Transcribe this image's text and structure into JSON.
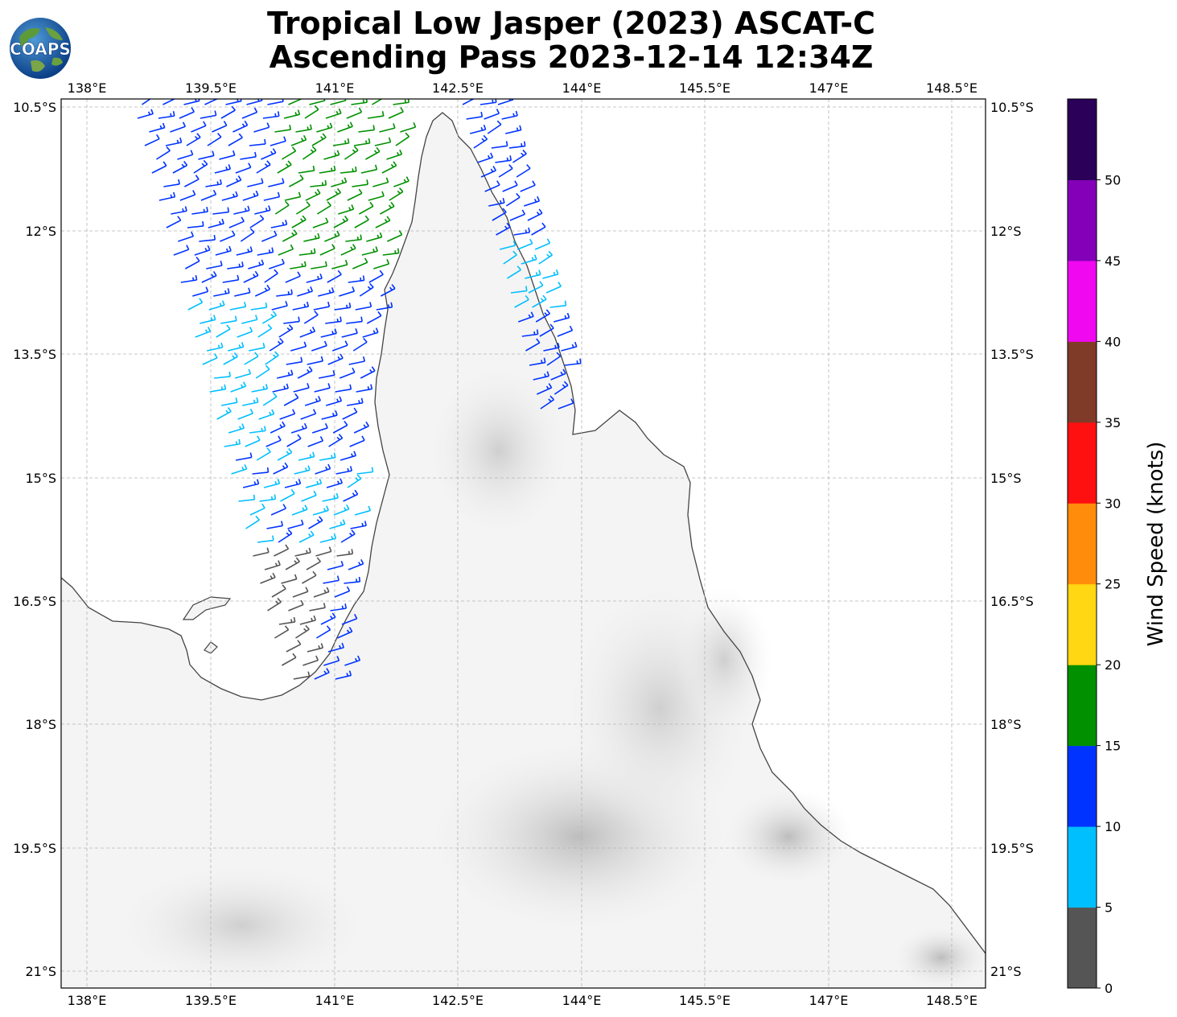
{
  "title": {
    "line1": "Tropical Low Jasper (2023) ASCAT-C",
    "line2": "Ascending Pass 2023-12-14 12:34Z"
  },
  "logo": {
    "text": "COAPS",
    "icon": "coaps-globe-logo"
  },
  "map": {
    "lon_range": [
      137.7,
      148.9
    ],
    "lat_range": [
      -21.2,
      -10.4
    ],
    "lon_ticks": [
      "138°E",
      "139.5°E",
      "141°E",
      "142.5°E",
      "144°E",
      "145.5°E",
      "147°E",
      "148.5°E"
    ],
    "lat_ticks": [
      "10.5°S",
      "12°S",
      "13.5°S",
      "15°S",
      "16.5°S",
      "18°S",
      "19.5°S",
      "21°S"
    ],
    "gridlines": true,
    "land_shading": "grayscale elevation",
    "wind_barbs": "scatterometer wind barbs colored by speed over Gulf of Carpentaria and Coral Sea coast"
  },
  "colorbar": {
    "label": "Wind Speed (knots)",
    "ticks": [
      "0",
      "5",
      "10",
      "15",
      "20",
      "25",
      "30",
      "35",
      "40",
      "45",
      "50"
    ],
    "colors": [
      "#555555",
      "#00bfff",
      "#0033ff",
      "#009000",
      "#ffd712",
      "#ff8c0a",
      "#ff1010",
      "#7f3a28",
      "#f008f0",
      "#8400b8",
      "#2a0058"
    ]
  }
}
